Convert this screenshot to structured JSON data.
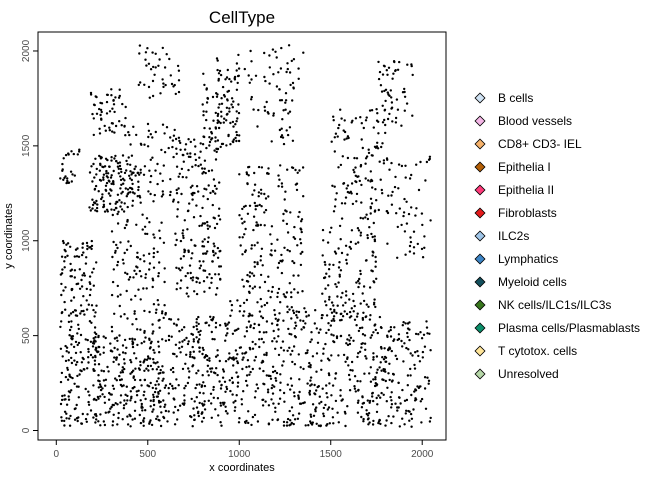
{
  "chart_data": {
    "type": "scatter",
    "title": "CellType",
    "xlabel": "x coordinates",
    "ylabel": "y coordinates",
    "xlim": [
      -100,
      2130
    ],
    "ylim": [
      -50,
      2100
    ],
    "xticks": [
      0,
      500,
      1000,
      1500,
      2000
    ],
    "yticks": [
      0,
      500,
      1000,
      1500,
      2000
    ],
    "grid": false,
    "legend_position": "right",
    "point_size": 1,
    "point_color": "#000000",
    "series": [
      {
        "name": "B cells",
        "color": "#cfe2f3"
      },
      {
        "name": "Blood vessels",
        "color": "#f4b6e6"
      },
      {
        "name": "CD8+ CD3- IEL",
        "color": "#f6b26b"
      },
      {
        "name": "Epithelia I",
        "color": "#b45f06"
      },
      {
        "name": "Epithelia II",
        "color": "#ff3b7a"
      },
      {
        "name": "Fibroblasts",
        "color": "#e31a1c"
      },
      {
        "name": "ILC2s",
        "color": "#9fc5e8"
      },
      {
        "name": "Lymphatics",
        "color": "#3d85c6"
      },
      {
        "name": "Myeloid cells",
        "color": "#134f5c"
      },
      {
        "name": "NK cells/ILC1s/ILC3s",
        "color": "#38761d"
      },
      {
        "name": "Plasma cells/Plasmablasts",
        "color": "#0b8f6b"
      },
      {
        "name": "T cytotox. cells",
        "color": "#ffe599"
      },
      {
        "name": "Unresolved",
        "color": "#b6d7a8"
      }
    ],
    "clusters": [
      {
        "x": [
          20,
          220
        ],
        "y": [
          20,
          1000
        ],
        "n": 220
      },
      {
        "x": [
          20,
          130
        ],
        "y": [
          1300,
          1480
        ],
        "n": 25
      },
      {
        "x": [
          180,
          420
        ],
        "y": [
          1150,
          1450
        ],
        "n": 140
      },
      {
        "x": [
          180,
          400
        ],
        "y": [
          1550,
          1800
        ],
        "n": 55
      },
      {
        "x": [
          200,
          600
        ],
        "y": [
          20,
          500
        ],
        "n": 280
      },
      {
        "x": [
          300,
          600
        ],
        "y": [
          500,
          1150
        ],
        "n": 120
      },
      {
        "x": [
          400,
          650
        ],
        "y": [
          1200,
          1620
        ],
        "n": 70
      },
      {
        "x": [
          450,
          680
        ],
        "y": [
          1750,
          2030
        ],
        "n": 40
      },
      {
        "x": [
          600,
          950
        ],
        "y": [
          20,
          600
        ],
        "n": 210
      },
      {
        "x": [
          650,
          900
        ],
        "y": [
          700,
          1550
        ],
        "n": 200
      },
      {
        "x": [
          800,
          1000
        ],
        "y": [
          1500,
          1900
        ],
        "n": 90
      },
      {
        "x": [
          950,
          1300
        ],
        "y": [
          20,
          700
        ],
        "n": 220
      },
      {
        "x": [
          1000,
          1350
        ],
        "y": [
          700,
          1400
        ],
        "n": 170
      },
      {
        "x": [
          1150,
          1300
        ],
        "y": [
          1500,
          2000
        ],
        "n": 35
      },
      {
        "x": [
          1300,
          1700
        ],
        "y": [
          20,
          650
        ],
        "n": 230
      },
      {
        "x": [
          1450,
          1750
        ],
        "y": [
          600,
          1100
        ],
        "n": 110
      },
      {
        "x": [
          1500,
          1800
        ],
        "y": [
          1100,
          1700
        ],
        "n": 120
      },
      {
        "x": [
          1700,
          2050
        ],
        "y": [
          20,
          600
        ],
        "n": 200
      },
      {
        "x": [
          1800,
          2050
        ],
        "y": [
          900,
          1450
        ],
        "n": 60
      },
      {
        "x": [
          1750,
          1950
        ],
        "y": [
          1600,
          1950
        ],
        "n": 55
      },
      {
        "x": [
          850,
          1350
        ],
        "y": [
          1600,
          2040
        ],
        "n": 55
      }
    ]
  }
}
